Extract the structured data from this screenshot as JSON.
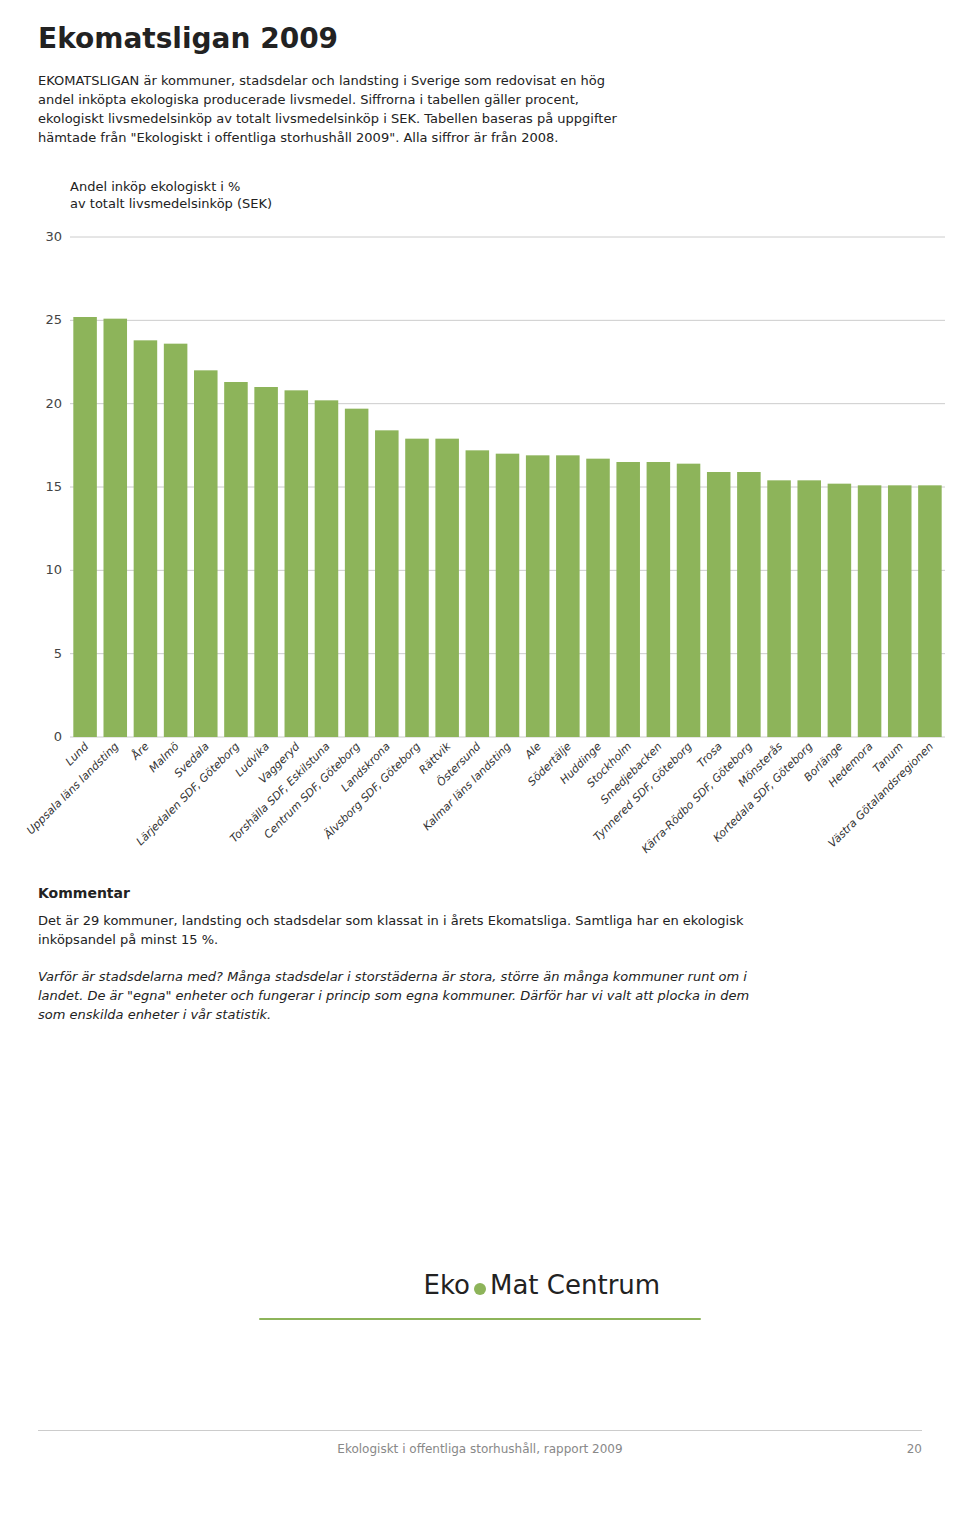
{
  "chart_data": {
    "type": "bar",
    "title": "Ekomatsligan 2009",
    "subtitle": "EKOMATSLIGAN är kommuner, stadsdelar och landsting i Sverige som redovisat en hög\nandel inköpta ekologiska producerade livsmedel. Siffrorna i tabellen gäller procent,\nekologiskt livsmedelsinköp av totalt livsmedelsinköp i SEK. Tabellen baseras på uppgifter\nhämtade från \"Ekologiskt i offentliga storhushåll 2009\". Alla siffror är från 2008.",
    "ylabel": "Andel inköp ekologiskt i %\nav totalt livsmedelsinköp (SEK)",
    "categories": [
      "Lund",
      "Uppsala läns landsting",
      "Åre",
      "Malmö",
      "Svedala",
      "Lärjedalen SDF, Göteborg",
      "Ludvika",
      "Vaggeryd",
      "Torshälla SDF, Eskilstuna",
      "Centrum SDF, Göteborg",
      "Landskrona",
      "Älvsborg SDF, Göteborg",
      "Rättvik",
      "Östersund",
      "Kalmar läns landsting",
      "Ale",
      "Södertälje",
      "Huddinge",
      "Stockholm",
      "Smedjebacken",
      "Tynnered SDF, Göteborg",
      "Trosa",
      "Kärra-Rödbo SDF, Göteborg",
      "Mönsterås",
      "Kortedala SDF, Göteborg",
      "Borlänge",
      "Hedemora",
      "Tanum",
      "Västra Götalandsregionen"
    ],
    "values": [
      25.2,
      25.1,
      23.8,
      23.6,
      22.0,
      21.3,
      21.0,
      20.8,
      20.2,
      19.7,
      18.4,
      17.9,
      17.9,
      17.2,
      17.0,
      16.9,
      16.9,
      16.7,
      16.5,
      16.5,
      16.4,
      15.9,
      15.9,
      15.4,
      15.4,
      15.2,
      15.1,
      15.1,
      15.1
    ],
    "color": "#8db45a",
    "ylim": [
      0,
      30
    ],
    "yticks": [
      0,
      5,
      10,
      15,
      20,
      25,
      30
    ],
    "grid": true,
    "annotations": [
      "Kommentar",
      "Det är 29 kommuner, landsting och stadsdelar som klassat in i årets Ekomatsliga. Samtliga har en ekologisk\ninköpsandel på minst 15 %.",
      "Varför är stadsdelarna med? Många stadsdelar i storstäderna är stora, större än många kommuner runt om i\nlandet. De är \"egna\" enheter och fungerar i princip som egna kommuner. Därför har vi valt att plocka in dem\nsom enskilda enheter i vår statistik.",
      "Eko",
      "Mat Centrum",
      "Ekologiskt i offentliga storhushåll, rapport 2009",
      "20"
    ]
  }
}
